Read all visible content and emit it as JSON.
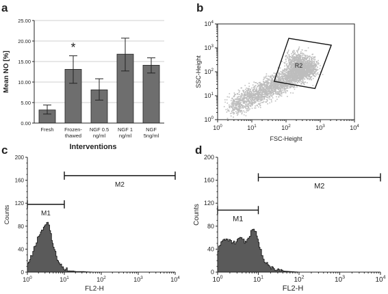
{
  "panels": [
    {
      "letter": "a",
      "chart_data": {
        "type": "bar",
        "categories": [
          "Fresh",
          "Frozen-\nthawed",
          "NGF 0.5\nng/ml",
          "NGF 1\nng/ml",
          "NGF\n5ng/ml"
        ],
        "values": [
          3.2,
          13.1,
          8.1,
          16.8,
          14.1
        ],
        "error_low": [
          2.2,
          9.7,
          5.6,
          12.7,
          12.2
        ],
        "error_high": [
          4.4,
          16.4,
          10.8,
          20.7,
          15.9
        ],
        "annotations": [
          {
            "category": "Frozen-\nthawed",
            "text": "*"
          }
        ],
        "ylabel": "Mean NO [%]",
        "xlabel": "Interventions",
        "yticks": [
          "0.00",
          "5.00",
          "10.00",
          "15.00",
          "20.00",
          "25.00"
        ],
        "ylim": [
          0,
          25
        ],
        "grid": true,
        "bar_color": "#6e6e6e"
      }
    },
    {
      "letter": "b",
      "chart_data": {
        "type": "scatter",
        "xscale": "log",
        "yscale": "log",
        "xlim": [
          1,
          10000
        ],
        "ylim": [
          1,
          10000
        ],
        "xlabel": "FSC-Height",
        "ylabel": "SSC-Height",
        "gate_label": "R2",
        "gate_corners": [
          [
            120,
            2500
          ],
          [
            2100,
            1300
          ],
          [
            700,
            20
          ],
          [
            45,
            40
          ]
        ],
        "point_color": "#bdbdbd",
        "x_tick_labels": [
          "10^0",
          "10^1",
          "10^2",
          "10^3",
          "10^4"
        ],
        "y_tick_labels": [
          "10^0",
          "10^1",
          "10^2",
          "10^3",
          "10^4"
        ]
      }
    },
    {
      "letter": "c",
      "chart_data": {
        "type": "area",
        "xscale": "log",
        "xlim": [
          1,
          10000
        ],
        "ylim": [
          0,
          200
        ],
        "xlabel": "FL2-H",
        "ylabel": "Counts",
        "yticks": [
          "0",
          "40",
          "80",
          "120",
          "160",
          "200"
        ],
        "x_tick_labels": [
          "10^0",
          "10^1",
          "10^2",
          "10^3",
          "10^4"
        ],
        "x": [
          1,
          1.3,
          1.6,
          2,
          2.4,
          2.7,
          3,
          3.3,
          3.7,
          4,
          4.5,
          5,
          5.6,
          6.3,
          7,
          8,
          9,
          10,
          12,
          14,
          17,
          20,
          30,
          60,
          10000
        ],
        "y": [
          14,
          30,
          48,
          64,
          72,
          78,
          84,
          86,
          82,
          72,
          58,
          44,
          34,
          24,
          18,
          12,
          8,
          6,
          4,
          2,
          2,
          1,
          1,
          0,
          0
        ],
        "markers": [
          {
            "label": "M1",
            "from": 1,
            "to": 10,
            "y": 118
          },
          {
            "label": "M2",
            "from": 10,
            "to": 10000,
            "y": 168
          }
        ]
      }
    },
    {
      "letter": "d",
      "chart_data": {
        "type": "area",
        "xscale": "log",
        "xlim": [
          1,
          10000
        ],
        "ylim": [
          0,
          200
        ],
        "xlabel": "FL2-H",
        "ylabel": "Counts",
        "yticks": [
          "0",
          "40",
          "80",
          "120",
          "160",
          "200"
        ],
        "x_tick_labels": [
          "10^0",
          "10^1",
          "10^2",
          "10^3",
          "10^4"
        ],
        "x": [
          1,
          1.2,
          1.5,
          1.8,
          2.2,
          2.6,
          3,
          3.5,
          4,
          4.5,
          5,
          5.5,
          6,
          6.5,
          7,
          7.5,
          8,
          8.5,
          9,
          10,
          11,
          12,
          13,
          15,
          17,
          20,
          25,
          30,
          40,
          60,
          100,
          10000
        ],
        "y": [
          38,
          52,
          58,
          56,
          52,
          52,
          56,
          60,
          58,
          52,
          52,
          58,
          64,
          72,
          76,
          74,
          72,
          68,
          62,
          52,
          40,
          30,
          22,
          16,
          12,
          8,
          6,
          4,
          2,
          1,
          0,
          0
        ],
        "markers": [
          {
            "label": "M1",
            "from": 1,
            "to": 10,
            "y": 108
          },
          {
            "label": "M2",
            "from": 10,
            "to": 10000,
            "y": 165
          }
        ]
      }
    }
  ]
}
